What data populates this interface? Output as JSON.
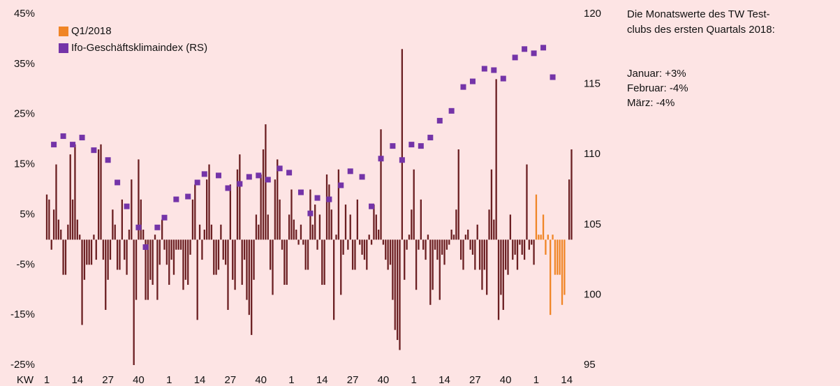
{
  "chart_data": {
    "type": "bar",
    "x_label": "KW",
    "categories": [
      "1",
      null,
      null,
      null,
      null,
      null,
      null,
      null,
      null,
      null,
      null,
      null,
      null,
      "14",
      null,
      null,
      null,
      null,
      null,
      null,
      null,
      null,
      null,
      null,
      null,
      null,
      "27",
      null,
      null,
      null,
      null,
      null,
      null,
      null,
      null,
      null,
      null,
      null,
      null,
      "40",
      null,
      null,
      null,
      null,
      null,
      null,
      null,
      null,
      null,
      null,
      null,
      null,
      "1",
      null,
      null,
      null,
      null,
      null,
      null,
      null,
      null,
      null,
      null,
      null,
      null,
      "14",
      null,
      null,
      null,
      null,
      null,
      null,
      null,
      null,
      null,
      null,
      null,
      null,
      "27",
      null,
      null,
      null,
      null,
      null,
      null,
      null,
      null,
      null,
      null,
      null,
      null,
      "40",
      null,
      null,
      null,
      null,
      null,
      null,
      null,
      null,
      null,
      null,
      null,
      null,
      "1",
      null,
      null,
      null,
      null,
      null,
      null,
      null,
      null,
      null,
      null,
      null,
      null,
      "14",
      null,
      null,
      null,
      null,
      null,
      null,
      null,
      null,
      null,
      null,
      null,
      null,
      "27",
      null,
      null,
      null,
      null,
      null,
      null,
      null,
      null,
      null,
      null,
      null,
      null,
      "40",
      null,
      null,
      null,
      null,
      null,
      null,
      null,
      null,
      null,
      null,
      null,
      null,
      "1",
      null,
      null,
      null,
      null,
      null,
      null,
      null,
      null,
      null,
      null,
      null,
      null,
      "14",
      null,
      null,
      null,
      null,
      null,
      null,
      null,
      null,
      null,
      null,
      null,
      null,
      "27",
      null,
      null,
      null,
      null,
      null,
      null,
      null,
      null,
      null,
      null,
      null,
      null,
      "40",
      null,
      null,
      null,
      null,
      null,
      null,
      null,
      null,
      null,
      null,
      null,
      null,
      "1",
      null,
      null,
      null,
      null,
      null,
      null,
      null,
      null,
      null,
      null,
      null,
      null,
      "14",
      null,
      null
    ],
    "series": [
      {
        "color": "#6b1f22",
        "values": [
          9,
          8,
          -2,
          6,
          15,
          4,
          2,
          -7,
          -7,
          3,
          17,
          8,
          19,
          4,
          1,
          -17,
          -8,
          -5,
          -5,
          -5,
          1,
          -4,
          18,
          19,
          -4,
          -14,
          -8,
          -4,
          6,
          3,
          -6,
          -6,
          8,
          -4,
          -7,
          2,
          12,
          -25,
          -12,
          16,
          8,
          2,
          -12,
          -12,
          -8,
          -9,
          1,
          -12,
          -5,
          4,
          -2,
          -5,
          -9,
          -4,
          -7,
          -2,
          -2,
          -2,
          -10,
          -8,
          -9,
          -3,
          8,
          11,
          -16,
          3,
          -4,
          2,
          12,
          15,
          3,
          -7,
          -7,
          -6,
          3,
          -4,
          -5,
          -14,
          11,
          -8,
          -10,
          14,
          17,
          -9,
          -4,
          -12,
          -15,
          -19,
          -8,
          5,
          3,
          13,
          18,
          23,
          5,
          -6,
          -11,
          12,
          16,
          8,
          -2,
          -9,
          -9,
          5,
          10,
          4,
          2,
          -1,
          3,
          -1,
          -6,
          -6,
          10,
          3,
          7,
          -2,
          5,
          -9,
          -9,
          13,
          11,
          6,
          -16,
          1,
          14,
          -11,
          -3,
          7,
          -2,
          5,
          -6,
          -6,
          8,
          -1,
          -3,
          -4,
          -6,
          1,
          -1,
          7,
          5,
          2,
          22,
          -1,
          -4,
          -6,
          -5,
          -12,
          -18,
          -20,
          -22,
          38,
          -8,
          -2,
          1,
          6,
          14,
          -10,
          -2,
          8,
          -2,
          -4,
          1,
          -13,
          -10,
          -2,
          -4,
          -12,
          -3,
          -5,
          -2,
          -1,
          2,
          1,
          6,
          18,
          -4,
          -6,
          1,
          2,
          -2,
          -3,
          -6,
          3,
          -6,
          -10,
          -6,
          -11,
          6,
          14,
          4,
          32,
          -16,
          -11,
          -14,
          -6,
          -7,
          5,
          -4,
          -3,
          -6,
          -1,
          -3,
          -4,
          15,
          -2,
          -1,
          -5,
          null,
          null,
          null,
          null,
          null,
          null,
          null,
          null,
          null,
          null,
          null,
          null,
          null,
          null,
          12,
          18
        ]
      },
      {
        "name": "Q1/2018",
        "color": "#f08526",
        "values": [
          null,
          null,
          null,
          null,
          null,
          null,
          null,
          null,
          null,
          null,
          null,
          null,
          null,
          null,
          null,
          null,
          null,
          null,
          null,
          null,
          null,
          null,
          null,
          null,
          null,
          null,
          null,
          null,
          null,
          null,
          null,
          null,
          null,
          null,
          null,
          null,
          null,
          null,
          null,
          null,
          null,
          null,
          null,
          null,
          null,
          null,
          null,
          null,
          null,
          null,
          null,
          null,
          null,
          null,
          null,
          null,
          null,
          null,
          null,
          null,
          null,
          null,
          null,
          null,
          null,
          null,
          null,
          null,
          null,
          null,
          null,
          null,
          null,
          null,
          null,
          null,
          null,
          null,
          null,
          null,
          null,
          null,
          null,
          null,
          null,
          null,
          null,
          null,
          null,
          null,
          null,
          null,
          null,
          null,
          null,
          null,
          null,
          null,
          null,
          null,
          null,
          null,
          null,
          null,
          null,
          null,
          null,
          null,
          null,
          null,
          null,
          null,
          null,
          null,
          null,
          null,
          null,
          null,
          null,
          null,
          null,
          null,
          null,
          null,
          null,
          null,
          null,
          null,
          null,
          null,
          null,
          null,
          null,
          null,
          null,
          null,
          null,
          null,
          null,
          null,
          null,
          null,
          null,
          null,
          null,
          null,
          null,
          null,
          null,
          null,
          null,
          null,
          null,
          null,
          null,
          null,
          null,
          null,
          null,
          null,
          null,
          null,
          null,
          null,
          null,
          null,
          null,
          null,
          null,
          null,
          null,
          null,
          null,
          null,
          null,
          null,
          null,
          null,
          null,
          null,
          null,
          null,
          null,
          null,
          null,
          null,
          null,
          null,
          null,
          null,
          null,
          null,
          null,
          null,
          null,
          null,
          null,
          null,
          null,
          null,
          null,
          null,
          null,
          null,
          null,
          null,
          null,
          null,
          9,
          1,
          1,
          5,
          -3,
          1,
          -15,
          1,
          -7,
          -7,
          -7,
          -13,
          -11,
          null,
          null,
          null
        ]
      },
      {
        "name": "Ifo-Geschäftsklimaindex (RS)",
        "color": "#7434a8",
        "axis": "y2",
        "type": "scatter",
        "values": [
          null,
          null,
          null,
          110.7,
          null,
          null,
          null,
          111.3,
          null,
          null,
          null,
          110.7,
          null,
          null,
          null,
          111.2,
          null,
          null,
          null,
          null,
          110.3,
          null,
          null,
          null,
          null,
          null,
          109.6,
          null,
          null,
          null,
          108.0,
          null,
          null,
          null,
          106.3,
          null,
          null,
          null,
          null,
          104.8,
          null,
          null,
          103.4,
          null,
          null,
          null,
          null,
          104.8,
          null,
          null,
          105.5,
          null,
          null,
          null,
          null,
          106.8,
          null,
          null,
          null,
          null,
          107.0,
          null,
          null,
          null,
          108.0,
          null,
          null,
          108.6,
          null,
          null,
          null,
          null,
          null,
          108.5,
          null,
          null,
          null,
          107.6,
          null,
          null,
          null,
          null,
          107.9,
          null,
          null,
          null,
          108.4,
          null,
          null,
          null,
          108.5,
          null,
          null,
          null,
          108.2,
          null,
          null,
          null,
          null,
          109.0,
          null,
          null,
          null,
          108.7,
          null,
          null,
          null,
          null,
          107.3,
          null,
          null,
          null,
          105.8,
          null,
          null,
          106.9,
          null,
          null,
          null,
          null,
          106.8,
          null,
          null,
          null,
          null,
          107.8,
          null,
          null,
          null,
          108.8,
          null,
          null,
          null,
          null,
          108.4,
          null,
          null,
          null,
          106.3,
          null,
          null,
          null,
          109.7,
          null,
          null,
          null,
          null,
          110.6,
          null,
          null,
          null,
          109.6,
          null,
          null,
          null,
          110.7,
          null,
          null,
          null,
          110.6,
          null,
          null,
          null,
          111.2,
          null,
          null,
          null,
          112.4,
          null,
          null,
          null,
          null,
          113.1,
          null,
          null,
          null,
          null,
          114.8,
          null,
          null,
          null,
          115.2,
          null,
          null,
          null,
          null,
          116.1,
          null,
          null,
          null,
          116.0,
          null,
          null,
          null,
          115.4,
          null,
          null,
          null,
          null,
          116.9,
          null,
          null,
          null,
          117.5,
          null,
          null,
          null,
          117.2,
          null,
          null,
          null,
          117.6,
          null,
          null,
          null,
          115.5,
          null,
          null,
          null,
          null,
          null,
          null,
          null,
          null
        ]
      }
    ],
    "ylim": [
      -25,
      45
    ],
    "yticks": [
      {
        "value": 45,
        "label": "45%"
      },
      {
        "value": 35,
        "label": "35%"
      },
      {
        "value": 25,
        "label": "25%"
      },
      {
        "value": 15,
        "label": "15%"
      },
      {
        "value": 5,
        "label": "5%"
      },
      {
        "value": -5,
        "label": "-5%"
      },
      {
        "value": -15,
        "label": "-15%"
      },
      {
        "value": -25,
        "label": "-25%"
      }
    ],
    "y2lim": [
      95,
      120
    ],
    "y2ticks": [
      120,
      115,
      110,
      105,
      100,
      95
    ],
    "grid": false,
    "legend": "upper left",
    "annotation": {
      "heading": [
        "Die Monatswerte des TW Test-",
        "clubs des ersten Quartals 2018:"
      ],
      "items": [
        "Januar: +3%",
        "Februar: -4%",
        "März: -4%"
      ]
    }
  }
}
